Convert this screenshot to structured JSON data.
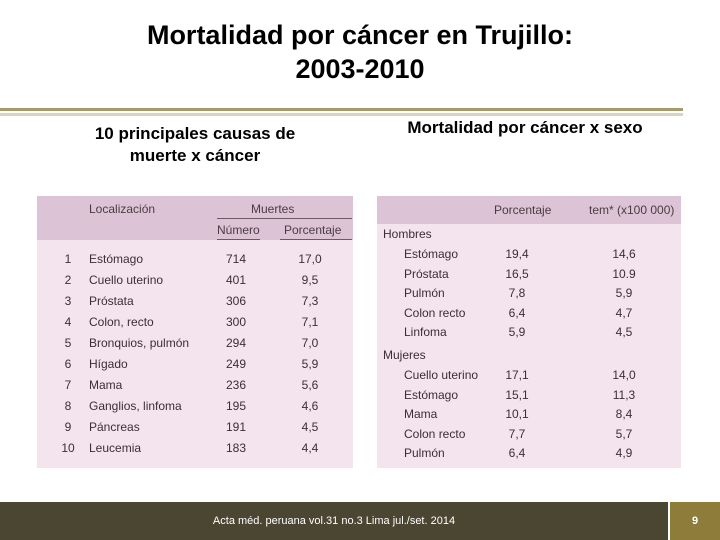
{
  "slide": {
    "title_line1": "Mortalidad por cáncer en Trujillo:",
    "title_line2": "2003-2010",
    "left_heading_line1": "10 principales causas de",
    "left_heading_line2": "muerte x cáncer",
    "right_heading": "Mortalidad por cáncer x sexo",
    "footer": "Acta méd. peruana vol.31 no.3 Lima jul./set. 2014",
    "page_number": "9"
  },
  "left_table": {
    "col_localizacion": "Localización",
    "col_muertes": "Muertes",
    "col_numero": "Número",
    "col_porcentaje": "Porcentaje",
    "rows": [
      {
        "rank": "1",
        "site": "Estómago",
        "number": "714",
        "percent": "17,0"
      },
      {
        "rank": "2",
        "site": "Cuello uterino",
        "number": "401",
        "percent": "9,5"
      },
      {
        "rank": "3",
        "site": "Próstata",
        "number": "306",
        "percent": "7,3"
      },
      {
        "rank": "4",
        "site": "Colon, recto",
        "number": "300",
        "percent": "7,1"
      },
      {
        "rank": "5",
        "site": "Bronquios, pulmón",
        "number": "294",
        "percent": "7,0"
      },
      {
        "rank": "6",
        "site": "Hígado",
        "number": "249",
        "percent": "5,9"
      },
      {
        "rank": "7",
        "site": "Mama",
        "number": "236",
        "percent": "5,6"
      },
      {
        "rank": "8",
        "site": "Ganglios, linfoma",
        "number": "195",
        "percent": "4,6"
      },
      {
        "rank": "9",
        "site": "Páncreas",
        "number": "191",
        "percent": "4,5"
      },
      {
        "rank": "10",
        "site": "Leucemia",
        "number": "183",
        "percent": "4,4"
      }
    ]
  },
  "right_table": {
    "col_porcentaje": "Porcentaje",
    "col_tem": "tem* (x100 000)",
    "group_men": "Hombres",
    "men_rows": [
      {
        "site": "Estómago",
        "percent": "19,4",
        "rate": "14,6"
      },
      {
        "site": "Próstata",
        "percent": "16,5",
        "rate": "10.9"
      },
      {
        "site": "Pulmón",
        "percent": "7,8",
        "rate": "5,9"
      },
      {
        "site": "Colon recto",
        "percent": "6,4",
        "rate": "4,7"
      },
      {
        "site": "Linfoma",
        "percent": "5,9",
        "rate": "4,5"
      }
    ],
    "group_women": "Mujeres",
    "women_rows": [
      {
        "site": "Cuello uterino",
        "percent": "17,1",
        "rate": "14,0"
      },
      {
        "site": "Estómago",
        "percent": "15,1",
        "rate": "11,3"
      },
      {
        "site": "Mama",
        "percent": "10,1",
        "rate": "8,4"
      },
      {
        "site": "Colon recto",
        "percent": "7,7",
        "rate": "5,7"
      },
      {
        "site": "Pulmón",
        "percent": "6,4",
        "rate": "4,9"
      }
    ]
  },
  "colors": {
    "table_background": "#f3e4ee",
    "table_header": "#dcc3d5",
    "footer_background": "#4a4632",
    "page_badge": "#8d7c3a",
    "rule": "#a59a6c"
  }
}
